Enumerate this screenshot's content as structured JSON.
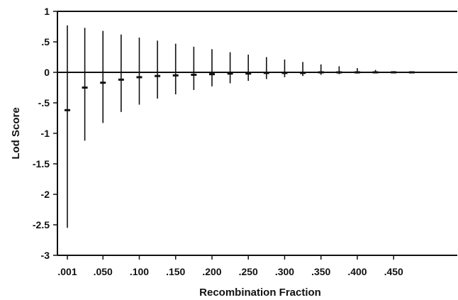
{
  "chart_data": {
    "type": "scatter",
    "title": "",
    "xlabel": "Recombination Fraction",
    "ylabel": "Lod Score",
    "ylim": [
      -3,
      1
    ],
    "grid": false,
    "legend": "none",
    "y_ticks": [
      1,
      0.5,
      0,
      -0.5,
      -1,
      -1.5,
      -2,
      -2.5,
      -3
    ],
    "y_tick_labels": [
      "1",
      ".5",
      "0",
      "-.5",
      "-1",
      "-1.5",
      "-2",
      "-2.5",
      "-3"
    ],
    "x_tick_labels": [
      ".001",
      ".050",
      ".100",
      ".150",
      ".200",
      ".250",
      ".300",
      ".350",
      ".400",
      ".450"
    ],
    "x_tick_values": [
      0.001,
      0.05,
      0.1,
      0.15,
      0.2,
      0.25,
      0.3,
      0.35,
      0.4,
      0.45
    ],
    "series": [
      {
        "x": [
          0.001,
          0.025,
          0.05,
          0.075,
          0.1,
          0.125,
          0.15,
          0.175,
          0.2,
          0.225,
          0.25,
          0.275,
          0.3,
          0.325,
          0.35,
          0.375,
          0.4,
          0.425,
          0.45,
          0.475
        ],
        "mean": [
          -0.62,
          -0.25,
          -0.17,
          -0.12,
          -0.08,
          -0.06,
          -0.05,
          -0.04,
          -0.03,
          -0.02,
          -0.02,
          -0.01,
          -0.01,
          -0.01,
          0.0,
          0.0,
          0.0,
          0.0,
          0.0,
          0.0
        ],
        "high": [
          0.77,
          0.73,
          0.68,
          0.62,
          0.57,
          0.52,
          0.47,
          0.42,
          0.38,
          0.33,
          0.29,
          0.25,
          0.21,
          0.17,
          0.13,
          0.1,
          0.07,
          0.04,
          0.02,
          0.01
        ],
        "low": [
          -2.55,
          -1.12,
          -0.83,
          -0.65,
          -0.53,
          -0.43,
          -0.36,
          -0.29,
          -0.23,
          -0.18,
          -0.14,
          -0.11,
          -0.08,
          -0.06,
          -0.04,
          -0.03,
          -0.02,
          -0.01,
          -0.01,
          0.0
        ]
      }
    ]
  }
}
